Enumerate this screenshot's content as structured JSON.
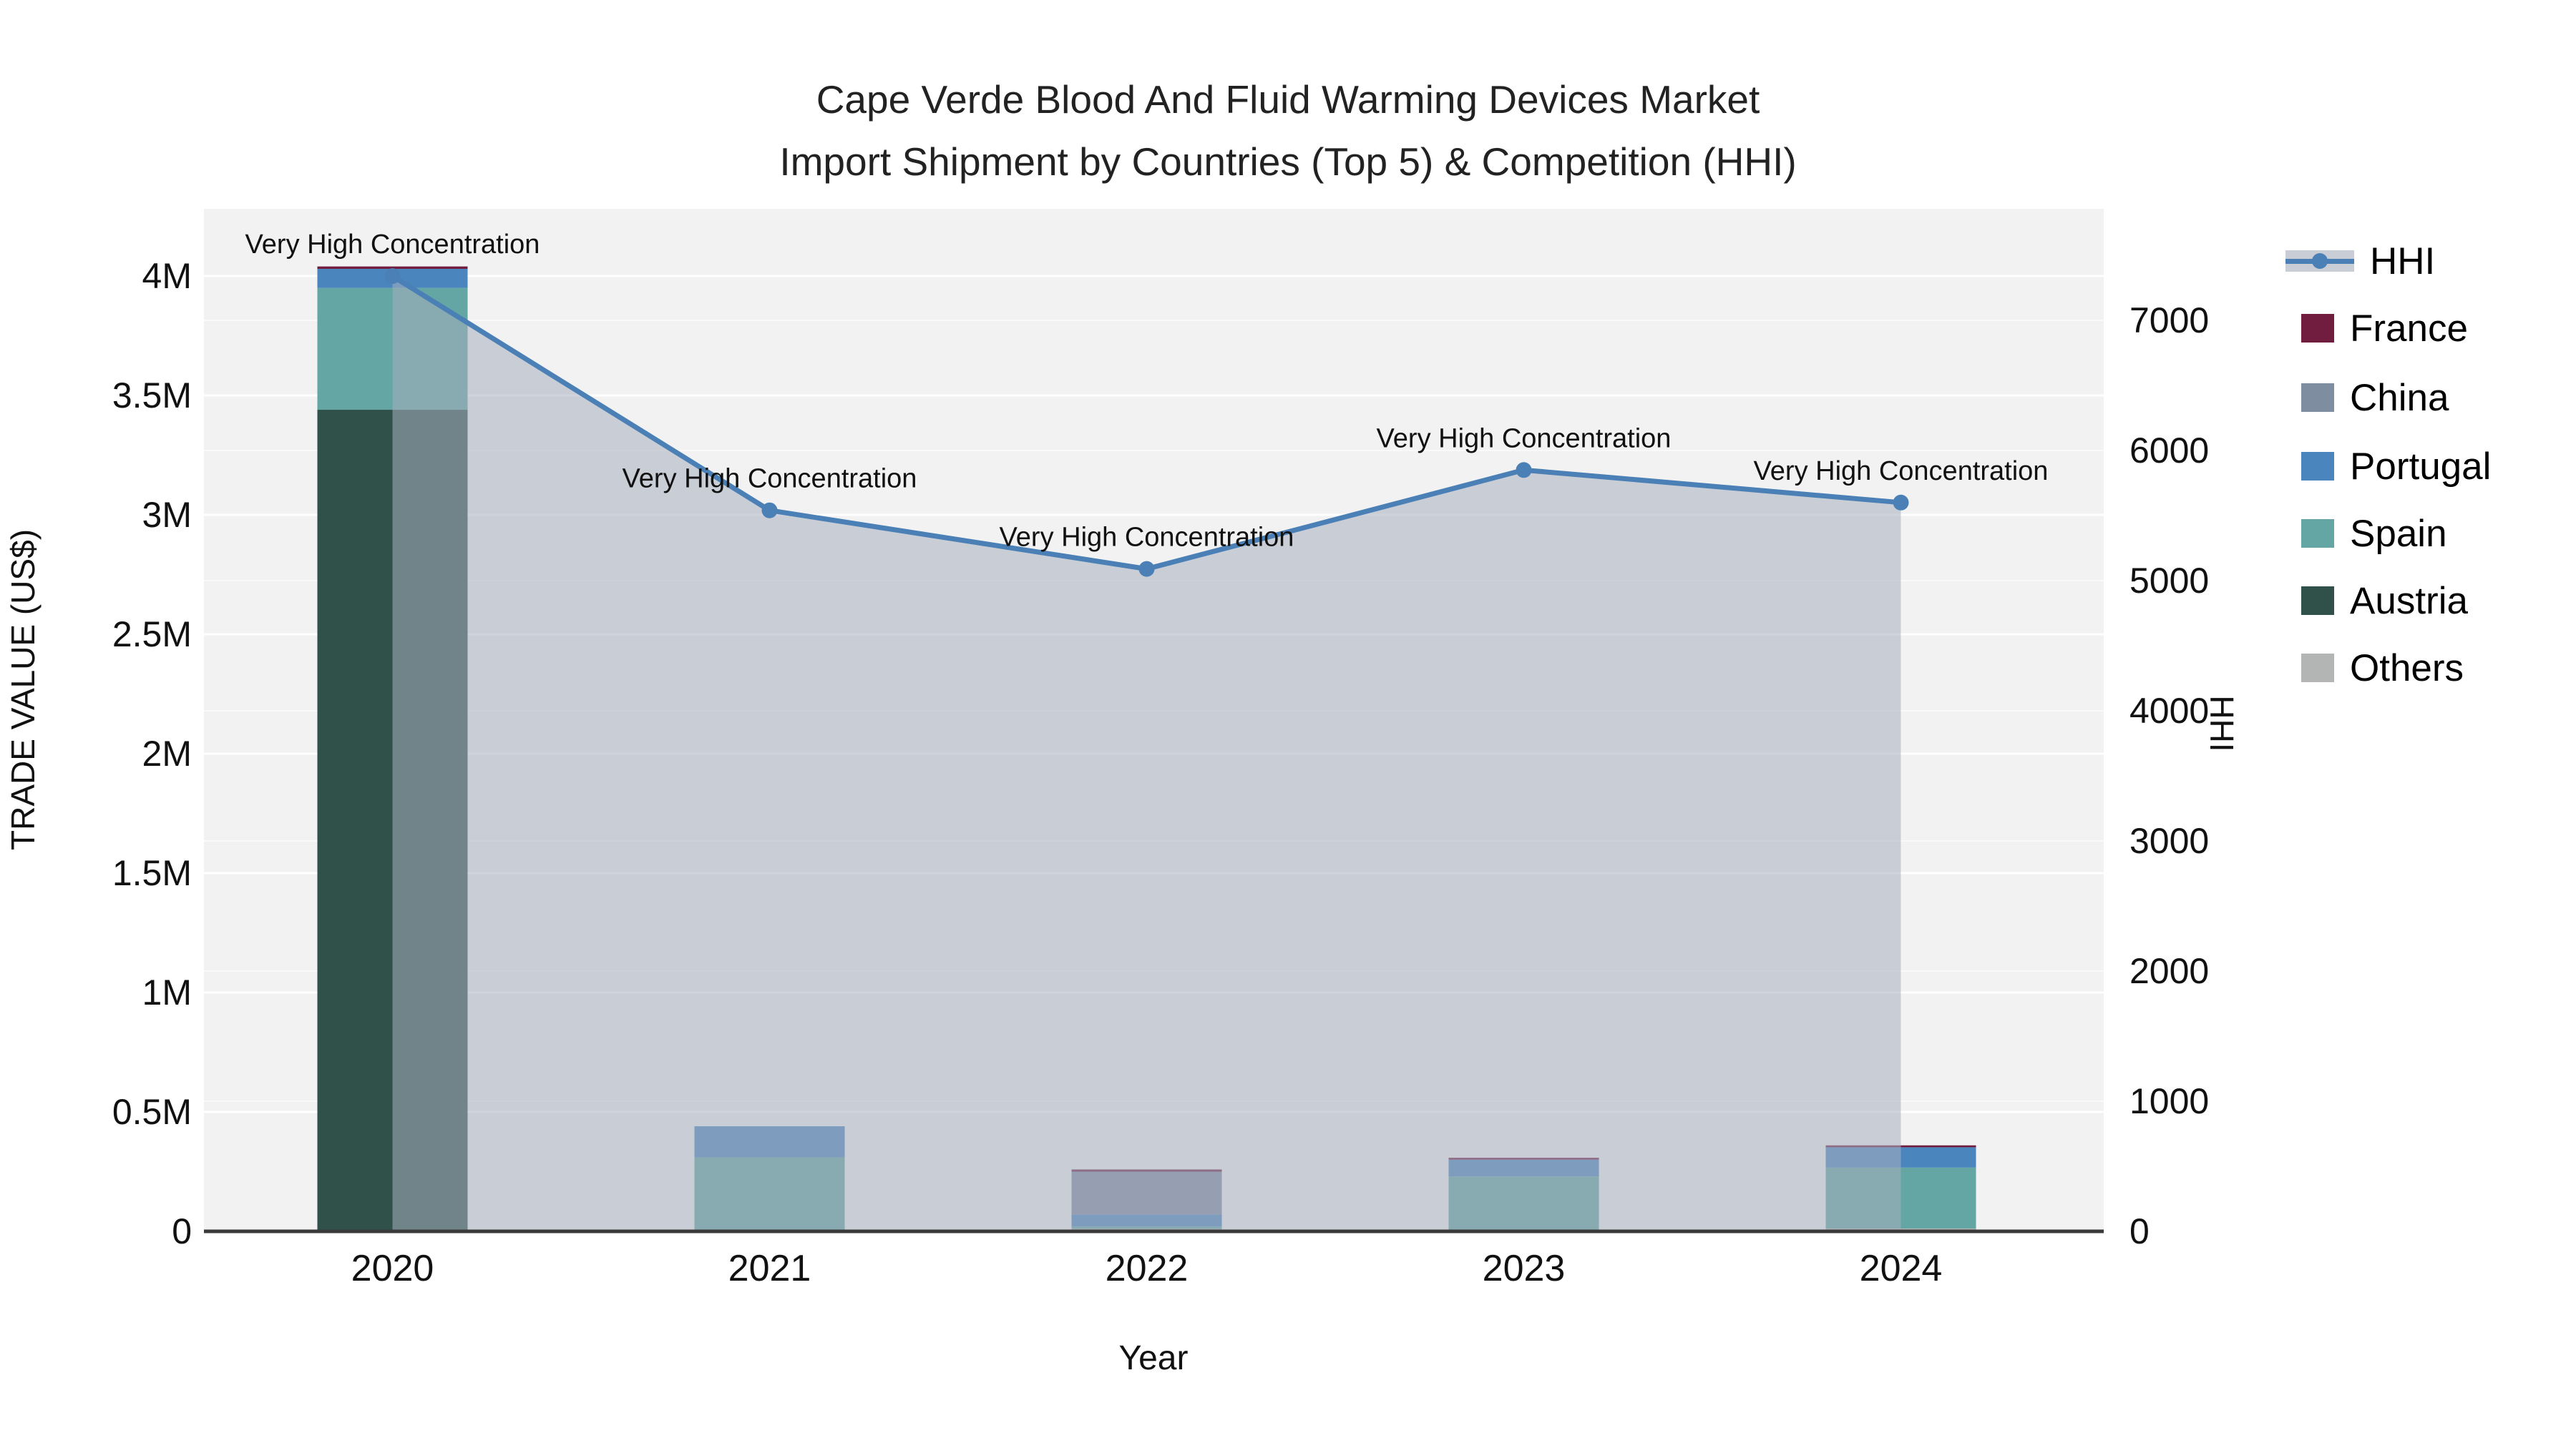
{
  "title": {
    "line1": "Cape Verde Blood And Fluid Warming Devices Market",
    "line2": "Import Shipment by Countries (Top 5) & Competition (HHI)"
  },
  "legend": {
    "items": [
      {
        "label": "HHI",
        "type": "line",
        "color": "#4a80b5"
      },
      {
        "label": "France",
        "type": "swatch",
        "color": "#701d40"
      },
      {
        "label": "China",
        "type": "swatch",
        "color": "#7f8da0"
      },
      {
        "label": "Portugal",
        "type": "swatch",
        "color": "#4a86bd"
      },
      {
        "label": "Spain",
        "type": "swatch",
        "color": "#63a6a3"
      },
      {
        "label": "Austria",
        "type": "swatch",
        "color": "#30504a"
      },
      {
        "label": "Others",
        "type": "swatch",
        "color": "#b3b5b5"
      }
    ]
  },
  "chart_data": {
    "type": "bar+line",
    "title": "Cape Verde Blood And Fluid Warming Devices Market — Import Shipment by Countries (Top 5) & Competition (HHI)",
    "categories": [
      "2020",
      "2021",
      "2022",
      "2023",
      "2024"
    ],
    "bar_unit": "US$",
    "stack_order_bottom_to_top": [
      "Others",
      "Austria",
      "Spain",
      "Portugal",
      "China",
      "France"
    ],
    "series": [
      {
        "name": "France",
        "color": "#701d40",
        "values": [
          10000,
          0,
          9000,
          8000,
          8000
        ]
      },
      {
        "name": "China",
        "color": "#7f8da0",
        "values": [
          0,
          0,
          180000,
          0,
          0
        ]
      },
      {
        "name": "Portugal",
        "color": "#4a86bd",
        "values": [
          80000,
          130000,
          50000,
          70000,
          85000
        ]
      },
      {
        "name": "Spain",
        "color": "#63a6a3",
        "values": [
          510000,
          310000,
          10000,
          230000,
          255000
        ]
      },
      {
        "name": "Austria",
        "color": "#30504a",
        "values": [
          3440000,
          0,
          0,
          0,
          0
        ]
      },
      {
        "name": "Others",
        "color": "#b3b5b5",
        "values": [
          0,
          0,
          10000,
          0,
          12000
        ]
      }
    ],
    "bar_totals": [
      4040000,
      440000,
      259000,
      308000,
      360000
    ],
    "line_series": {
      "name": "HHI",
      "color": "#4a80b5",
      "axis": "right",
      "values": [
        7340,
        5540,
        5090,
        5850,
        5600
      ]
    },
    "annotations": {
      "text": "Very High Concentration",
      "applies_to": [
        "2020",
        "2021",
        "2022",
        "2023",
        "2024"
      ]
    },
    "left_axis": {
      "label": "TRADE VALUE (US$)",
      "ticks": [
        "0",
        "0.5M",
        "1M",
        "1.5M",
        "2M",
        "2.5M",
        "3M",
        "3.5M",
        "4M"
      ],
      "tick_step": 500000,
      "range": [
        0,
        4280000
      ]
    },
    "right_axis": {
      "label": "HHI",
      "ticks": [
        "0",
        "1000",
        "2000",
        "3000",
        "4000",
        "5000",
        "6000",
        "7000"
      ],
      "tick_step": 1000,
      "range": [
        0,
        7860
      ]
    },
    "x_axis_label": "Year",
    "grid": true,
    "legend_position": "right",
    "plot_bg": "#f2f2f2",
    "area_fill": "rgba(167,175,191,0.55)",
    "axis_line_color": "#3a3a3a"
  }
}
